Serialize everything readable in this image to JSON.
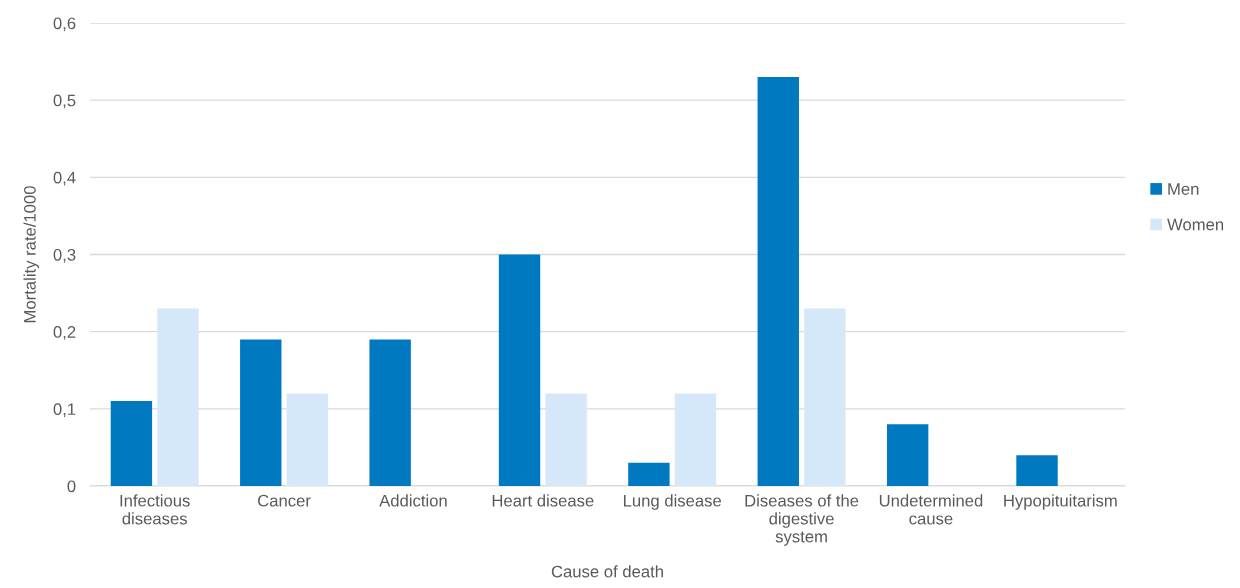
{
  "chart_data": {
    "type": "bar",
    "xlabel": "Cause of death",
    "ylabel": "Mortality rate/1000",
    "categories": [
      "Infectious diseases",
      "Cancer",
      "Addiction",
      "Heart disease",
      "Lung disease",
      "Diseases of the digestive system",
      "Undetermined cause",
      "Hypopituitarism"
    ],
    "series": [
      {
        "name": "Men",
        "color": "#0079c1",
        "values": [
          0.11,
          0.19,
          0.19,
          0.3,
          0.03,
          0.53,
          0.08,
          0.04
        ]
      },
      {
        "name": "Women",
        "color": "#d4e8fa",
        "values": [
          0.23,
          0.12,
          null,
          0.12,
          0.12,
          0.23,
          null,
          null
        ]
      }
    ],
    "ylim": [
      0,
      0.6
    ],
    "yticks": [
      0,
      {
        "value": 0.1,
        "label": "0,1"
      },
      {
        "value": 0.2,
        "label": "0,2"
      },
      {
        "value": 0.3,
        "label": "0,3"
      },
      {
        "value": 0.4,
        "label": "0,4"
      },
      {
        "value": 0.5,
        "label": "0,5"
      },
      {
        "value": 0.6,
        "label": "0,6"
      }
    ],
    "grid": "y",
    "legend": "right"
  }
}
